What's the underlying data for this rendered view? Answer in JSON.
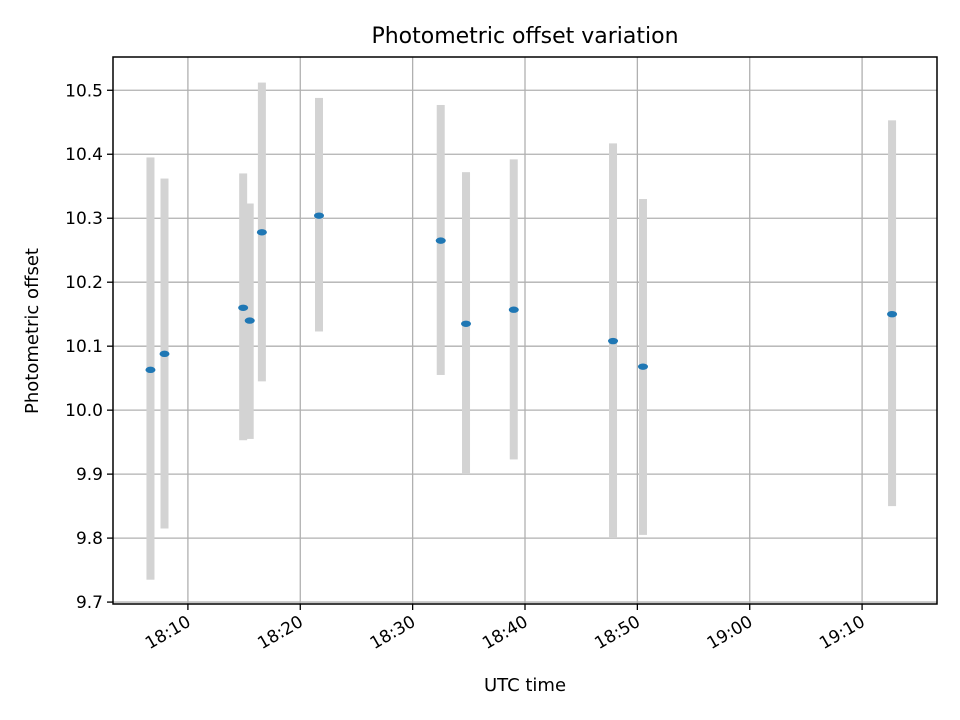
{
  "chart_data": {
    "type": "scatter",
    "title": "Photometric offset variation",
    "xlabel": "UTC time",
    "ylabel": "Photometric offset",
    "xlim": [
      "18:03:20",
      "19:16:40"
    ],
    "ylim": [
      9.697,
      10.552
    ],
    "xticks": [
      "18:10",
      "18:20",
      "18:30",
      "18:40",
      "18:50",
      "19:00",
      "19:10"
    ],
    "yticks": [
      "9.7",
      "9.8",
      "9.9",
      "10.0",
      "10.1",
      "10.2",
      "10.3",
      "10.4",
      "10.5"
    ],
    "grid": true,
    "colors": {
      "point": "#1f77b4",
      "error_bar": "#d3d3d3"
    },
    "points": [
      {
        "x": "18:06:40",
        "y": 10.063,
        "ymin": 9.735,
        "ymax": 10.395
      },
      {
        "x": "18:07:55",
        "y": 10.088,
        "ymin": 9.815,
        "ymax": 10.362
      },
      {
        "x": "18:14:55",
        "y": 10.16,
        "ymin": 9.953,
        "ymax": 10.37
      },
      {
        "x": "18:15:30",
        "y": 10.14,
        "ymin": 9.955,
        "ymax": 10.323
      },
      {
        "x": "18:16:35",
        "y": 10.278,
        "ymin": 10.045,
        "ymax": 10.512
      },
      {
        "x": "18:21:40",
        "y": 10.304,
        "ymin": 10.123,
        "ymax": 10.488
      },
      {
        "x": "18:32:30",
        "y": 10.265,
        "ymin": 10.055,
        "ymax": 10.477
      },
      {
        "x": "18:34:45",
        "y": 10.135,
        "ymin": 9.9,
        "ymax": 10.372
      },
      {
        "x": "18:39:00",
        "y": 10.157,
        "ymin": 9.923,
        "ymax": 10.392
      },
      {
        "x": "18:47:50",
        "y": 10.108,
        "ymin": 9.8,
        "ymax": 10.417
      },
      {
        "x": "18:50:30",
        "y": 10.068,
        "ymin": 9.805,
        "ymax": 10.33
      },
      {
        "x": "19:12:40",
        "y": 10.15,
        "ymin": 9.85,
        "ymax": 10.453
      }
    ]
  }
}
